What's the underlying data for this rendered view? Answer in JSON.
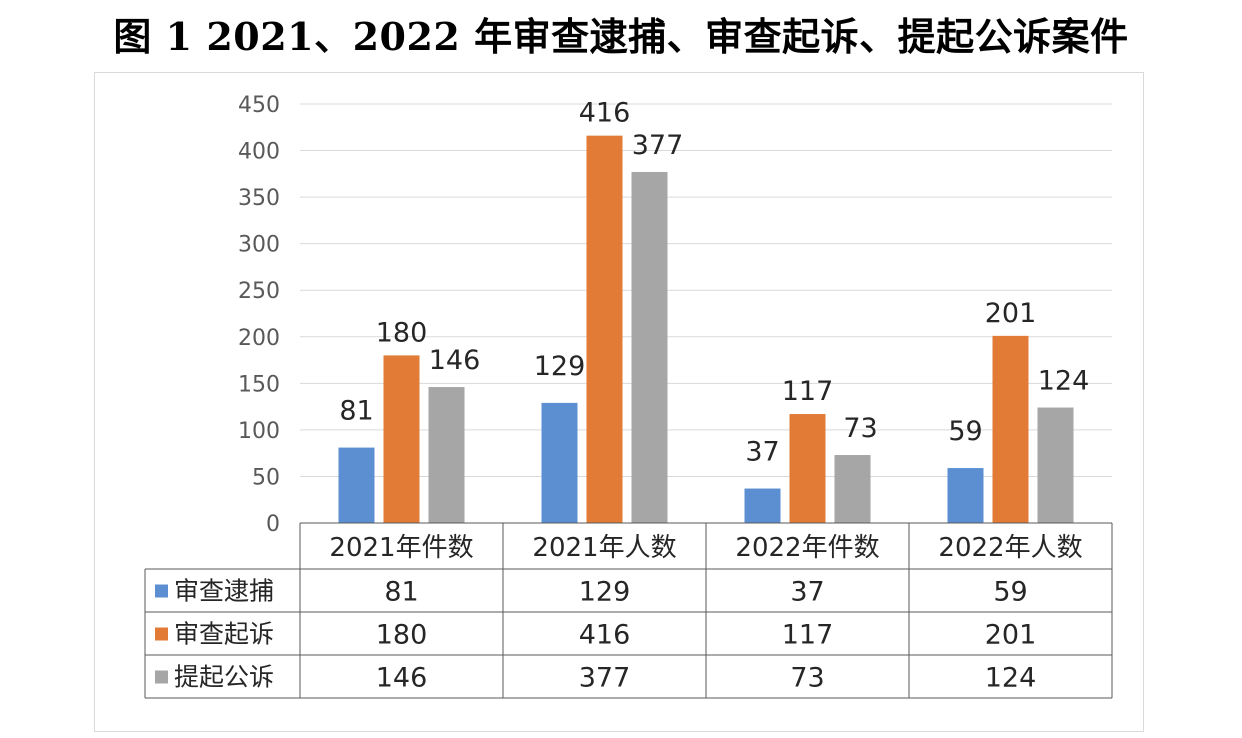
{
  "title": "图 1 2021、2022 年审查逮捕、审查起诉、提起公诉案件",
  "chart_data": {
    "type": "bar",
    "categories": [
      "2021年件数",
      "2021年人数",
      "2022年件数",
      "2022年人数"
    ],
    "series": [
      {
        "name": "审查逮捕",
        "values": [
          81,
          129,
          37,
          59
        ],
        "color": "#5b8fd1"
      },
      {
        "name": "审查起诉",
        "values": [
          180,
          416,
          117,
          201
        ],
        "color": "#e17b35"
      },
      {
        "name": "提起公诉",
        "values": [
          146,
          377,
          73,
          124
        ],
        "color": "#a6a6a6"
      }
    ],
    "ylim": [
      0,
      450
    ],
    "yticks": [
      0,
      50,
      100,
      150,
      200,
      250,
      300,
      350,
      400,
      450
    ],
    "grid": true,
    "legend": "data-table"
  }
}
